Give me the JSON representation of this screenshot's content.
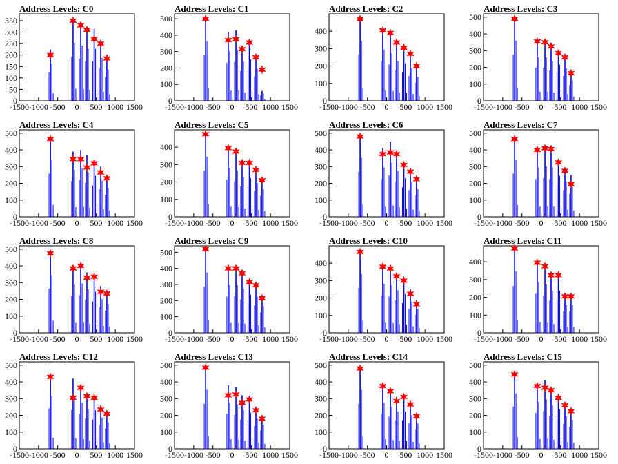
{
  "chart_data": [
    {
      "type": "bar",
      "title": "Address Levels: C0",
      "xlim": [
        -1500,
        1500
      ],
      "ylim": [
        0,
        380
      ],
      "xticks": [
        -1500,
        -1000,
        -500,
        0,
        500,
        1000,
        1500
      ],
      "yticks": [
        0,
        50,
        100,
        150,
        200,
        250,
        300,
        350
      ],
      "peak_x": [
        -690,
        -100,
        100,
        260,
        450,
        620,
        780
      ],
      "peak_heights": [
        225,
        350,
        335,
        315,
        315,
        260,
        190
      ],
      "markers": [
        {
          "x": -690,
          "y": 200
        },
        {
          "x": -100,
          "y": 350
        },
        {
          "x": 100,
          "y": 330
        },
        {
          "x": 260,
          "y": 310
        },
        {
          "x": 450,
          "y": 270
        },
        {
          "x": 620,
          "y": 250
        },
        {
          "x": 780,
          "y": 185
        }
      ]
    },
    {
      "type": "bar",
      "title": "Address Levels: C1",
      "xlim": [
        -1500,
        1500
      ],
      "ylim": [
        0,
        530
      ],
      "xticks": [
        -1500,
        -1000,
        -500,
        0,
        500,
        1000,
        1500
      ],
      "yticks": [
        0,
        100,
        200,
        300,
        400,
        500
      ],
      "peak_x": [
        -690,
        -100,
        100,
        260,
        450,
        620,
        780
      ],
      "peak_heights": [
        505,
        420,
        430,
        330,
        350,
        270,
        60
      ],
      "markers": [
        {
          "x": -690,
          "y": 500
        },
        {
          "x": -100,
          "y": 370
        },
        {
          "x": 100,
          "y": 375
        },
        {
          "x": 260,
          "y": 315
        },
        {
          "x": 450,
          "y": 355
        },
        {
          "x": 620,
          "y": 265
        },
        {
          "x": 780,
          "y": 190
        }
      ]
    },
    {
      "type": "bar",
      "title": "Address Levels: C2",
      "xlim": [
        -1500,
        1500
      ],
      "ylim": [
        0,
        500
      ],
      "xticks": [
        -1500,
        -1000,
        -500,
        0,
        500,
        1000,
        1500
      ],
      "yticks": [
        0,
        100,
        200,
        300,
        400
      ],
      "peak_x": [
        -690,
        -100,
        100,
        260,
        450,
        620,
        780
      ],
      "peak_heights": [
        480,
        410,
        380,
        320,
        300,
        260,
        190
      ],
      "markers": [
        {
          "x": -690,
          "y": 470
        },
        {
          "x": -100,
          "y": 405
        },
        {
          "x": 100,
          "y": 390
        },
        {
          "x": 260,
          "y": 335
        },
        {
          "x": 450,
          "y": 305
        },
        {
          "x": 620,
          "y": 270
        },
        {
          "x": 780,
          "y": 200
        }
      ]
    },
    {
      "type": "bar",
      "title": "Address Levels: C3",
      "xlim": [
        -1500,
        1500
      ],
      "ylim": [
        0,
        520
      ],
      "xticks": [
        -1500,
        -1000,
        -500,
        0,
        500,
        1000,
        1500
      ],
      "yticks": [
        0,
        100,
        200,
        300,
        400,
        500
      ],
      "peak_x": [
        -690,
        -100,
        100,
        260,
        450,
        620,
        780
      ],
      "peak_heights": [
        500,
        360,
        360,
        330,
        300,
        270,
        170
      ],
      "markers": [
        {
          "x": -690,
          "y": 490
        },
        {
          "x": -100,
          "y": 355
        },
        {
          "x": 100,
          "y": 350
        },
        {
          "x": 260,
          "y": 325
        },
        {
          "x": 450,
          "y": 285
        },
        {
          "x": 620,
          "y": 260
        },
        {
          "x": 780,
          "y": 165
        }
      ]
    },
    {
      "type": "bar",
      "title": "Address Levels: C4",
      "xlim": [
        -1500,
        1500
      ],
      "ylim": [
        0,
        520
      ],
      "xticks": [
        -1500,
        -1000,
        -500,
        0,
        500,
        1000,
        1500
      ],
      "yticks": [
        0,
        100,
        200,
        300,
        400,
        500
      ],
      "peak_x": [
        -690,
        -100,
        100,
        260,
        450,
        620,
        780
      ],
      "peak_heights": [
        470,
        390,
        400,
        370,
        340,
        300,
        240
      ],
      "markers": [
        {
          "x": -690,
          "y": 465
        },
        {
          "x": -100,
          "y": 345
        },
        {
          "x": 100,
          "y": 345
        },
        {
          "x": 260,
          "y": 295
        },
        {
          "x": 450,
          "y": 320
        },
        {
          "x": 620,
          "y": 265
        },
        {
          "x": 780,
          "y": 230
        }
      ]
    },
    {
      "type": "bar",
      "title": "Address Levels: C5",
      "xlim": [
        -1500,
        1500
      ],
      "ylim": [
        0,
        500
      ],
      "xticks": [
        -1500,
        -1000,
        -500,
        0,
        500,
        1000,
        1500
      ],
      "yticks": [
        0,
        100,
        200,
        300,
        400
      ],
      "peak_x": [
        -690,
        -100,
        100,
        260,
        450,
        620,
        780
      ],
      "peak_heights": [
        480,
        390,
        370,
        320,
        310,
        270,
        220
      ],
      "markers": [
        {
          "x": -690,
          "y": 475
        },
        {
          "x": -100,
          "y": 395
        },
        {
          "x": 100,
          "y": 375
        },
        {
          "x": 260,
          "y": 310
        },
        {
          "x": 450,
          "y": 310
        },
        {
          "x": 620,
          "y": 270
        },
        {
          "x": 780,
          "y": 210
        }
      ]
    },
    {
      "type": "bar",
      "title": "Address Levels: C6",
      "xlim": [
        -1500,
        1500
      ],
      "ylim": [
        0,
        520
      ],
      "xticks": [
        -1500,
        -1000,
        -500,
        0,
        500,
        1000,
        1500
      ],
      "yticks": [
        0,
        100,
        200,
        300,
        400,
        500
      ],
      "peak_x": [
        -690,
        -100,
        100,
        260,
        450,
        620,
        780
      ],
      "peak_heights": [
        490,
        410,
        450,
        380,
        320,
        290,
        230
      ],
      "markers": [
        {
          "x": -690,
          "y": 480
        },
        {
          "x": -100,
          "y": 375
        },
        {
          "x": 100,
          "y": 385
        },
        {
          "x": 260,
          "y": 375
        },
        {
          "x": 450,
          "y": 310
        },
        {
          "x": 620,
          "y": 270
        },
        {
          "x": 780,
          "y": 225
        }
      ]
    },
    {
      "type": "bar",
      "title": "Address Levels: C7",
      "xlim": [
        -1500,
        1500
      ],
      "ylim": [
        0,
        520
      ],
      "xticks": [
        -1500,
        -1000,
        -500,
        0,
        500,
        1000,
        1500
      ],
      "yticks": [
        0,
        100,
        200,
        300,
        400,
        500
      ],
      "peak_x": [
        -690,
        -100,
        100,
        260,
        450,
        620,
        780
      ],
      "peak_heights": [
        470,
        410,
        420,
        410,
        340,
        290,
        250
      ],
      "markers": [
        {
          "x": -690,
          "y": 465
        },
        {
          "x": -100,
          "y": 400
        },
        {
          "x": 100,
          "y": 410
        },
        {
          "x": 260,
          "y": 405
        },
        {
          "x": 450,
          "y": 325
        },
        {
          "x": 620,
          "y": 275
        },
        {
          "x": 780,
          "y": 195
        }
      ]
    },
    {
      "type": "bar",
      "title": "Address Levels: C8",
      "xlim": [
        -1500,
        1500
      ],
      "ylim": [
        0,
        520
      ],
      "xticks": [
        -1500,
        -1000,
        -500,
        0,
        500,
        1000,
        1500
      ],
      "yticks": [
        0,
        100,
        200,
        300,
        400,
        500
      ],
      "peak_x": [
        -690,
        -100,
        100,
        260,
        450,
        620,
        780
      ],
      "peak_heights": [
        480,
        400,
        410,
        360,
        340,
        280,
        240
      ],
      "markers": [
        {
          "x": -690,
          "y": 475
        },
        {
          "x": -100,
          "y": 385
        },
        {
          "x": 100,
          "y": 400
        },
        {
          "x": 260,
          "y": 330
        },
        {
          "x": 450,
          "y": 335
        },
        {
          "x": 620,
          "y": 245
        },
        {
          "x": 780,
          "y": 235
        }
      ]
    },
    {
      "type": "bar",
      "title": "Address Levels: C9",
      "xlim": [
        -1500,
        1500
      ],
      "ylim": [
        0,
        540
      ],
      "xticks": [
        -1500,
        -1000,
        -500,
        0,
        500,
        1000,
        1500
      ],
      "yticks": [
        0,
        100,
        200,
        300,
        400,
        500
      ],
      "peak_x": [
        -690,
        -100,
        100,
        260,
        450,
        620,
        780
      ],
      "peak_heights": [
        520,
        410,
        410,
        380,
        330,
        310,
        230
      ],
      "markers": [
        {
          "x": -690,
          "y": 520
        },
        {
          "x": -100,
          "y": 400
        },
        {
          "x": 100,
          "y": 400
        },
        {
          "x": 260,
          "y": 370
        },
        {
          "x": 450,
          "y": 315
        },
        {
          "x": 620,
          "y": 295
        },
        {
          "x": 780,
          "y": 215
        }
      ]
    },
    {
      "type": "bar",
      "title": "Address Levels: C10",
      "xlim": [
        -1500,
        1500
      ],
      "ylim": [
        0,
        500
      ],
      "xticks": [
        -1500,
        -1000,
        -500,
        0,
        500,
        1000,
        1500
      ],
      "yticks": [
        0,
        100,
        200,
        300,
        400
      ],
      "peak_x": [
        -690,
        -100,
        100,
        260,
        450,
        620,
        780
      ],
      "peak_heights": [
        470,
        390,
        380,
        340,
        310,
        250,
        190
      ],
      "markers": [
        {
          "x": -690,
          "y": 465
        },
        {
          "x": -100,
          "y": 380
        },
        {
          "x": 100,
          "y": 370
        },
        {
          "x": 260,
          "y": 325
        },
        {
          "x": 450,
          "y": 300
        },
        {
          "x": 620,
          "y": 225
        },
        {
          "x": 780,
          "y": 165
        }
      ]
    },
    {
      "type": "bar",
      "title": "Address Levels: C11",
      "xlim": [
        -1500,
        1500
      ],
      "ylim": [
        0,
        490
      ],
      "xticks": [
        -1500,
        -1000,
        -500,
        0,
        500,
        1000,
        1500
      ],
      "yticks": [
        0,
        100,
        200,
        300,
        400
      ],
      "peak_x": [
        -690,
        -100,
        100,
        260,
        450,
        620,
        780
      ],
      "peak_heights": [
        480,
        400,
        380,
        330,
        330,
        220,
        220
      ],
      "markers": [
        {
          "x": -690,
          "y": 475
        },
        {
          "x": -100,
          "y": 395
        },
        {
          "x": 100,
          "y": 375
        },
        {
          "x": 260,
          "y": 325
        },
        {
          "x": 450,
          "y": 325
        },
        {
          "x": 620,
          "y": 205
        },
        {
          "x": 780,
          "y": 205
        }
      ]
    },
    {
      "type": "bar",
      "title": "Address Levels: C12",
      "xlim": [
        -1500,
        1500
      ],
      "ylim": [
        0,
        520
      ],
      "xticks": [
        -1500,
        -1000,
        -500,
        0,
        500,
        1000,
        1500
      ],
      "yticks": [
        0,
        100,
        200,
        300,
        400,
        500
      ],
      "peak_x": [
        -690,
        -100,
        100,
        260,
        450,
        620,
        780
      ],
      "peak_heights": [
        440,
        420,
        380,
        330,
        320,
        260,
        220
      ],
      "markers": [
        {
          "x": -690,
          "y": 430
        },
        {
          "x": -100,
          "y": 305
        },
        {
          "x": 100,
          "y": 365
        },
        {
          "x": 260,
          "y": 315
        },
        {
          "x": 450,
          "y": 305
        },
        {
          "x": 620,
          "y": 235
        },
        {
          "x": 780,
          "y": 210
        }
      ]
    },
    {
      "type": "bar",
      "title": "Address Levels: C13",
      "xlim": [
        -1500,
        1500
      ],
      "ylim": [
        0,
        520
      ],
      "xticks": [
        -1500,
        -1000,
        -500,
        0,
        500,
        1000,
        1500
      ],
      "yticks": [
        0,
        100,
        200,
        300,
        400,
        500
      ],
      "peak_x": [
        -690,
        -100,
        100,
        260,
        450,
        620,
        780
      ],
      "peak_heights": [
        490,
        380,
        370,
        320,
        300,
        250,
        200
      ],
      "markers": [
        {
          "x": -690,
          "y": 485
        },
        {
          "x": -100,
          "y": 320
        },
        {
          "x": 100,
          "y": 325
        },
        {
          "x": 260,
          "y": 275
        },
        {
          "x": 450,
          "y": 295
        },
        {
          "x": 620,
          "y": 230
        },
        {
          "x": 780,
          "y": 180
        }
      ]
    },
    {
      "type": "bar",
      "title": "Address Levels: C14",
      "xlim": [
        -1500,
        1500
      ],
      "ylim": [
        0,
        520
      ],
      "xticks": [
        -1500,
        -1000,
        -500,
        0,
        500,
        1000,
        1500
      ],
      "yticks": [
        0,
        100,
        200,
        300,
        400,
        500
      ],
      "peak_x": [
        -690,
        -100,
        100,
        260,
        450,
        620,
        780
      ],
      "peak_heights": [
        490,
        380,
        350,
        310,
        310,
        280,
        210
      ],
      "markers": [
        {
          "x": -690,
          "y": 480
        },
        {
          "x": -100,
          "y": 375
        },
        {
          "x": 100,
          "y": 345
        },
        {
          "x": 260,
          "y": 285
        },
        {
          "x": 450,
          "y": 310
        },
        {
          "x": 620,
          "y": 265
        },
        {
          "x": 780,
          "y": 195
        }
      ]
    },
    {
      "type": "bar",
      "title": "Address Levels: C15",
      "xlim": [
        -1500,
        1500
      ],
      "ylim": [
        0,
        520
      ],
      "xticks": [
        -1500,
        -1000,
        -500,
        0,
        500,
        1000,
        1500
      ],
      "yticks": [
        0,
        100,
        200,
        300,
        400,
        500
      ],
      "peak_x": [
        -690,
        -100,
        100,
        260,
        450,
        620,
        780
      ],
      "peak_heights": [
        460,
        390,
        410,
        360,
        330,
        270,
        240
      ],
      "markers": [
        {
          "x": -690,
          "y": 445
        },
        {
          "x": -100,
          "y": 375
        },
        {
          "x": 100,
          "y": 365
        },
        {
          "x": 260,
          "y": 350
        },
        {
          "x": 450,
          "y": 305
        },
        {
          "x": 620,
          "y": 260
        },
        {
          "x": 780,
          "y": 225
        }
      ]
    }
  ],
  "colors": {
    "histogram": "#0000ff",
    "marker": "#ff0000",
    "axis": "#000000"
  }
}
